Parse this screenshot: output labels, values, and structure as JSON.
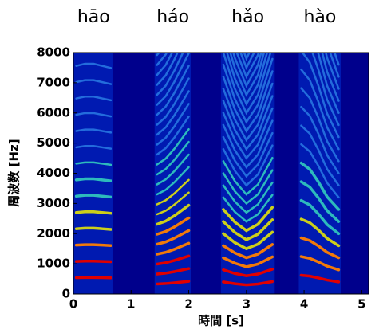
{
  "chart_data": {
    "type": "spectrogram",
    "xlabel": "時間 [s]",
    "ylabel": "周波数 [Hz]",
    "xlim": [
      0,
      5.12
    ],
    "ylim": [
      0,
      8000
    ],
    "xticks": [
      0,
      1,
      2,
      3,
      4,
      5
    ],
    "yticks": [
      0,
      1000,
      2000,
      3000,
      4000,
      5000,
      6000,
      7000,
      8000
    ],
    "background": "#00008c",
    "syllables": [
      {
        "name": "hāo",
        "x": [
          0.05,
          0.2,
          0.35,
          0.5,
          0.65
        ],
        "f0": [
          540,
          545,
          545,
          540,
          535
        ]
      },
      {
        "name": "háo",
        "x": [
          1.45,
          1.6,
          1.75,
          1.9,
          2.0
        ],
        "f0": [
          330,
          345,
          370,
          400,
          420
        ]
      },
      {
        "name": "hǎo",
        "x": [
          2.6,
          2.8,
          3.0,
          3.2,
          3.45
        ],
        "f0": [
          400,
          340,
          300,
          330,
          410
        ]
      },
      {
        "name": "hào",
        "x": [
          3.95,
          4.1,
          4.25,
          4.4,
          4.6
        ],
        "f0": [
          620,
          590,
          530,
          460,
          400
        ]
      }
    ]
  }
}
